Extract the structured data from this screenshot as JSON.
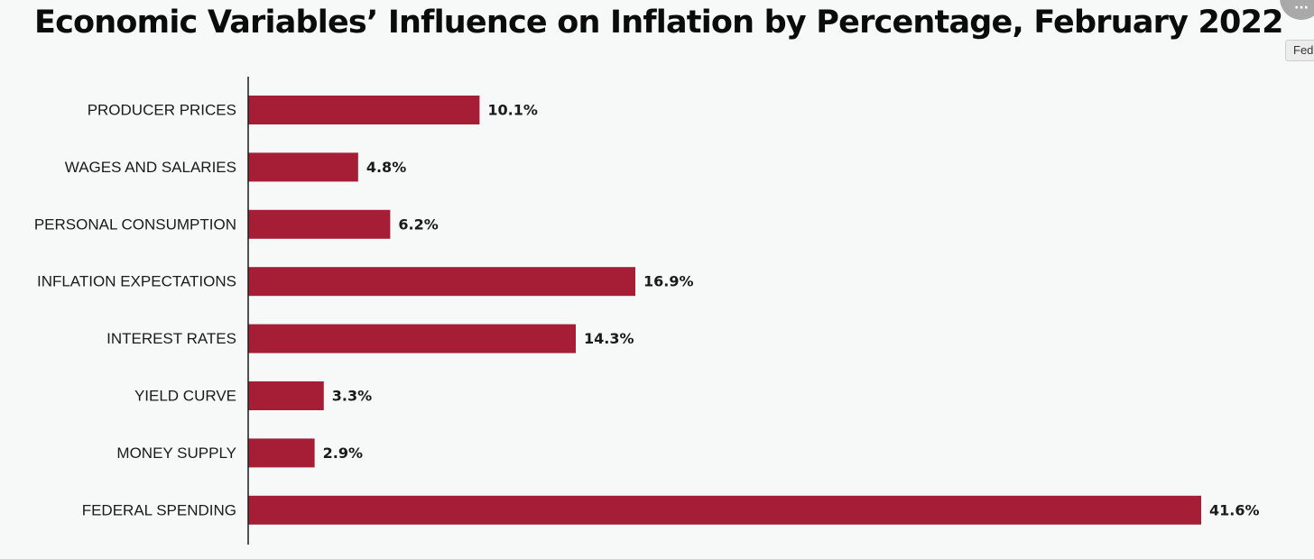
{
  "tooltip": {
    "text": "Fed"
  },
  "chart_data": {
    "type": "bar",
    "orientation": "horizontal",
    "title": "Economic Variables’ Influence on Inflation by Percentage, February 2022",
    "xlabel": "",
    "ylabel": "",
    "xlim": [
      0,
      41.6
    ],
    "grid": false,
    "legend": "none",
    "bar_color": "#a51e36",
    "value_suffix": "%",
    "categories": [
      "PRODUCER PRICES",
      "WAGES AND SALARIES",
      "PERSONAL CONSUMPTION",
      "INFLATION EXPECTATIONS",
      "INTEREST RATES",
      "YIELD CURVE",
      "MONEY SUPPLY",
      "FEDERAL SPENDING"
    ],
    "values": [
      10.1,
      4.8,
      6.2,
      16.9,
      14.3,
      3.3,
      2.9,
      41.6
    ],
    "data_labels": [
      "10.1%",
      "4.8%",
      "6.2%",
      "16.9%",
      "14.3%",
      "3.3%",
      "2.9%",
      "41.6%"
    ]
  }
}
